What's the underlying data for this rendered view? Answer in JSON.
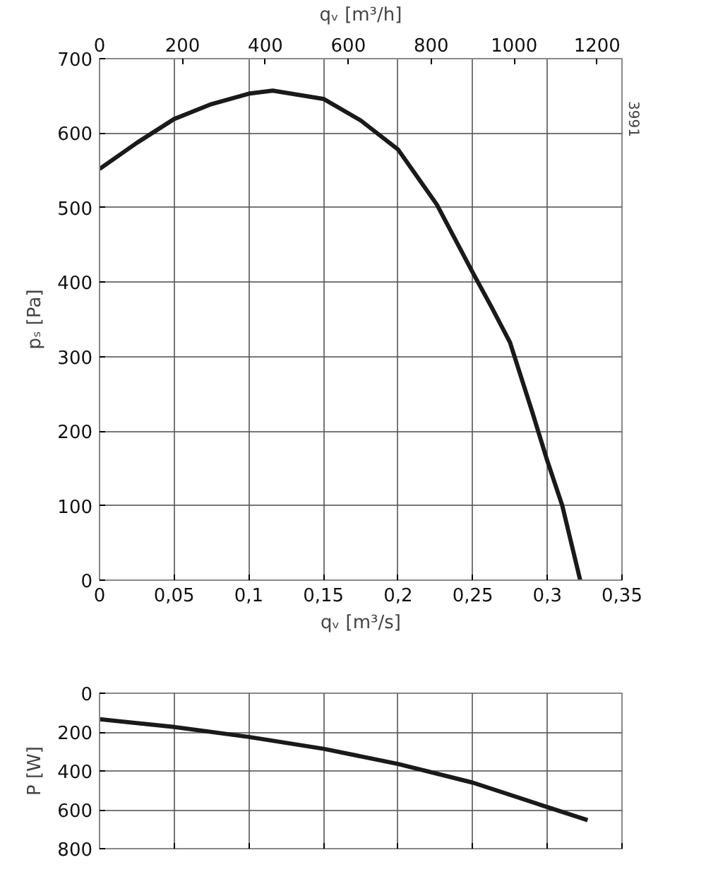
{
  "chart_data": [
    {
      "type": "line",
      "xlabel": "qᵥ [m³/s]",
      "ylabel": "pₛ [Pa]",
      "x2label": "qᵥ [m³/h]",
      "x": [
        0,
        0.025,
        0.05,
        0.075,
        0.1,
        0.116,
        0.15,
        0.175,
        0.2,
        0.226,
        0.25,
        0.2625,
        0.275,
        0.29,
        0.3,
        0.31,
        0.322
      ],
      "series": [
        {
          "color": "#1a1a1a",
          "values": [
            552,
            587,
            619,
            639,
            653,
            657,
            646,
            617,
            578,
            504,
            413,
            367,
            319,
            225,
            160,
            100,
            0
          ]
        }
      ],
      "xlim": [
        0,
        0.35
      ],
      "xticks": [
        0,
        {
          "value": 0.05,
          "label": "0,05"
        },
        {
          "value": 0.1,
          "label": "0,1"
        },
        {
          "value": 0.15,
          "label": "0,15"
        },
        {
          "value": 0.2,
          "label": "0,2"
        },
        {
          "value": 0.25,
          "label": "0,25"
        },
        {
          "value": 0.3,
          "label": "0,3"
        },
        {
          "value": 0.35,
          "label": "0,35"
        }
      ],
      "ylim": [
        0,
        700
      ],
      "yticks": [
        0,
        100,
        200,
        300,
        400,
        500,
        600,
        700
      ],
      "x2lim": [
        0,
        1260
      ],
      "x2ticks": [
        0,
        200,
        400,
        600,
        800,
        1000,
        1200
      ],
      "grid": true,
      "marker": "none",
      "line_style": "solid",
      "annotations": [
        "3991"
      ]
    },
    {
      "type": "line",
      "ylabel": "P [W]",
      "x": [
        0,
        0.05,
        0.1,
        0.15,
        0.2,
        0.25,
        0.3,
        0.327
      ],
      "series": [
        {
          "color": "#1a1a1a",
          "values": [
            134,
            174,
            225,
            286,
            364,
            460,
            586,
            653
          ]
        }
      ],
      "xlim": [
        0,
        0.35
      ],
      "xticks": [
        0,
        0.05,
        0.1,
        0.15,
        0.2,
        0.25,
        0.3,
        0.35
      ],
      "ylim": [
        800,
        0
      ],
      "yticks": [
        0,
        200,
        400,
        600,
        800
      ],
      "grid": true,
      "marker": "none",
      "line_style": "solid",
      "tick_labels": "y"
    }
  ]
}
